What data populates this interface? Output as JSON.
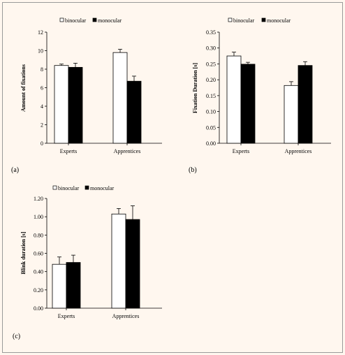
{
  "chart_data": [
    {
      "type": "bar",
      "panel_label": "(a)",
      "ylabel": "Amount of fixations",
      "categories": [
        "Experts",
        "Apprentices"
      ],
      "ylim": [
        0,
        12
      ],
      "yticks": [
        "0",
        "2",
        "4",
        "6",
        "8",
        "10",
        "12"
      ],
      "series": [
        {
          "name": "binocular",
          "values": [
            8.4,
            9.8
          ],
          "errors": [
            0.15,
            0.35
          ]
        },
        {
          "name": "monocular",
          "values": [
            8.2,
            6.7
          ],
          "errors": [
            0.45,
            0.55
          ]
        }
      ]
    },
    {
      "type": "bar",
      "panel_label": "(b)",
      "ylabel": "Fixation Duration [s]",
      "categories": [
        "Experts",
        "Apprentices"
      ],
      "ylim": [
        0,
        0.35
      ],
      "yticks": [
        "0.00",
        "0.05",
        "0.10",
        "0.15",
        "0.20",
        "0.25",
        "0.30",
        "0.35"
      ],
      "series": [
        {
          "name": "binocular",
          "values": [
            0.275,
            0.182
          ],
          "errors": [
            0.012,
            0.012
          ]
        },
        {
          "name": "monocular",
          "values": [
            0.249,
            0.245
          ],
          "errors": [
            0.006,
            0.012
          ]
        }
      ]
    },
    {
      "type": "bar",
      "panel_label": "(c)",
      "ylabel": "Blink duration [s]",
      "categories": [
        "Experts",
        "Apprentices"
      ],
      "ylim": [
        0,
        1.2
      ],
      "yticks": [
        "0.00",
        "0.20",
        "0.40",
        "0.60",
        "0.80",
        "1.00",
        "1.20"
      ],
      "series": [
        {
          "name": "binocular",
          "values": [
            0.48,
            1.03
          ],
          "errors": [
            0.08,
            0.06
          ]
        },
        {
          "name": "monocular",
          "values": [
            0.5,
            0.97
          ],
          "errors": [
            0.08,
            0.15
          ]
        }
      ]
    }
  ],
  "colors": {
    "binocular": "#FFFFFF",
    "monocular": "#000000",
    "stroke": "#000000",
    "background": "#FFF7EF"
  }
}
